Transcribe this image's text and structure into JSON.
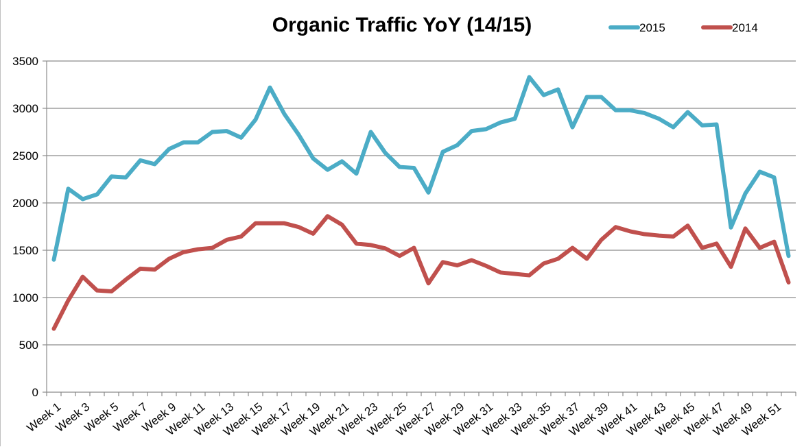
{
  "chart_data": {
    "type": "line",
    "title": "Organic Traffic YoY (14/15)",
    "xlabel": "",
    "ylabel": "",
    "ylim": [
      0,
      3500
    ],
    "yticks": [
      0,
      500,
      1000,
      1500,
      2000,
      2500,
      3000,
      3500
    ],
    "grid": true,
    "legend_position": "top-right",
    "categories": [
      "Week 1",
      "Week 2",
      "Week 3",
      "Week 4",
      "Week 5",
      "Week 6",
      "Week 7",
      "Week 8",
      "Week 9",
      "Week 10",
      "Week 11",
      "Week 12",
      "Week 13",
      "Week 14",
      "Week 15",
      "Week 16",
      "Week 17",
      "Week 18",
      "Week 19",
      "Week 20",
      "Week 21",
      "Week 22",
      "Week 23",
      "Week 24",
      "Week 25",
      "Week 26",
      "Week 27",
      "Week 28",
      "Week 29",
      "Week 30",
      "Week 31",
      "Week 32",
      "Week 33",
      "Week 34",
      "Week 35",
      "Week 36",
      "Week 37",
      "Week 38",
      "Week 39",
      "Week 40",
      "Week 41",
      "Week 42",
      "Week 43",
      "Week 44",
      "Week 45",
      "Week 46",
      "Week 47",
      "Week 48",
      "Week 49",
      "Week 50",
      "Week 51",
      "Week 52"
    ],
    "tick_labels": [
      "Week 1",
      "Week 3",
      "Week 5",
      "Week 7",
      "Week 9",
      "Week 11",
      "Week 13",
      "Week 15",
      "Week 17",
      "Week 19",
      "Week 21",
      "Week 23",
      "Week 25",
      "Week 27",
      "Week 29",
      "Week 31",
      "Week 33",
      "Week 35",
      "Week 37",
      "Week 39",
      "Week 41",
      "Week 43",
      "Week 45",
      "Week 47",
      "Week 49",
      "Week 51"
    ],
    "series": [
      {
        "name": "2015",
        "color": "#4bacc6",
        "values": [
          1400,
          2150,
          2040,
          2090,
          2280,
          2270,
          2450,
          2410,
          2570,
          2640,
          2640,
          2750,
          2760,
          2690,
          2880,
          3220,
          2940,
          2720,
          2470,
          2350,
          2440,
          2310,
          2750,
          2530,
          2380,
          2370,
          2110,
          2540,
          2610,
          2760,
          2780,
          2850,
          2890,
          3330,
          3140,
          3200,
          2800,
          3120,
          3120,
          2980,
          2980,
          2950,
          2890,
          2800,
          2960,
          2820,
          2830,
          1740,
          2100,
          2330,
          2270,
          1440
        ]
      },
      {
        "name": "2014",
        "color": "#c0504d",
        "values": [
          670,
          970,
          1220,
          1075,
          1065,
          1190,
          1305,
          1295,
          1410,
          1480,
          1510,
          1525,
          1610,
          1645,
          1785,
          1785,
          1785,
          1745,
          1675,
          1860,
          1770,
          1570,
          1555,
          1520,
          1440,
          1525,
          1150,
          1375,
          1340,
          1395,
          1335,
          1265,
          1250,
          1235,
          1360,
          1410,
          1525,
          1410,
          1610,
          1745,
          1700,
          1670,
          1655,
          1645,
          1760,
          1525,
          1570,
          1325,
          1730,
          1525,
          1590,
          1160
        ]
      }
    ]
  }
}
